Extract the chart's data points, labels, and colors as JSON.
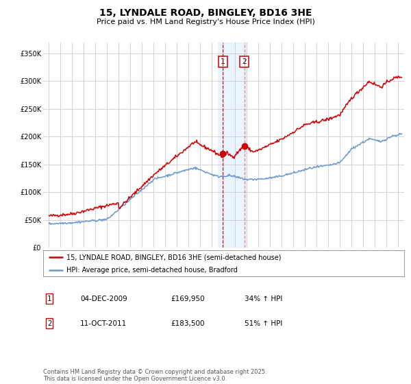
{
  "title": "15, LYNDALE ROAD, BINGLEY, BD16 3HE",
  "subtitle": "Price paid vs. HM Land Registry's House Price Index (HPI)",
  "footnote": "Contains HM Land Registry data © Crown copyright and database right 2025.\nThis data is licensed under the Open Government Licence v3.0.",
  "legend_line1": "15, LYNDALE ROAD, BINGLEY, BD16 3HE (semi-detached house)",
  "legend_line2": "HPI: Average price, semi-detached house, Bradford",
  "table": [
    {
      "num": "1",
      "date": "04-DEC-2009",
      "price": "£169,950",
      "pct": "34% ↑ HPI"
    },
    {
      "num": "2",
      "date": "11-OCT-2011",
      "price": "£183,500",
      "pct": "51% ↑ HPI"
    }
  ],
  "sale1_x": 2009.92,
  "sale1_y": 169950,
  "sale2_x": 2011.78,
  "sale2_y": 183500,
  "vline1_x": 2009.92,
  "vline2_x": 2011.78,
  "shade_x1": 2009.5,
  "shade_x2": 2011.95,
  "ylim": [
    0,
    370000
  ],
  "xlim": [
    1994.5,
    2025.5
  ],
  "yticks": [
    0,
    50000,
    100000,
    150000,
    200000,
    250000,
    300000,
    350000
  ],
  "ytick_labels": [
    "£0",
    "£50K",
    "£100K",
    "£150K",
    "£200K",
    "£250K",
    "£300K",
    "£350K"
  ],
  "red_color": "#cc0000",
  "blue_color": "#6699cc",
  "shade_color": "#ddeeff",
  "bg_color": "#ffffff",
  "grid_color": "#cccccc",
  "title_fontsize": 10,
  "subtitle_fontsize": 8,
  "tick_fontsize": 7,
  "legend_fontsize": 7,
  "table_fontsize": 7.5,
  "footnote_fontsize": 6
}
